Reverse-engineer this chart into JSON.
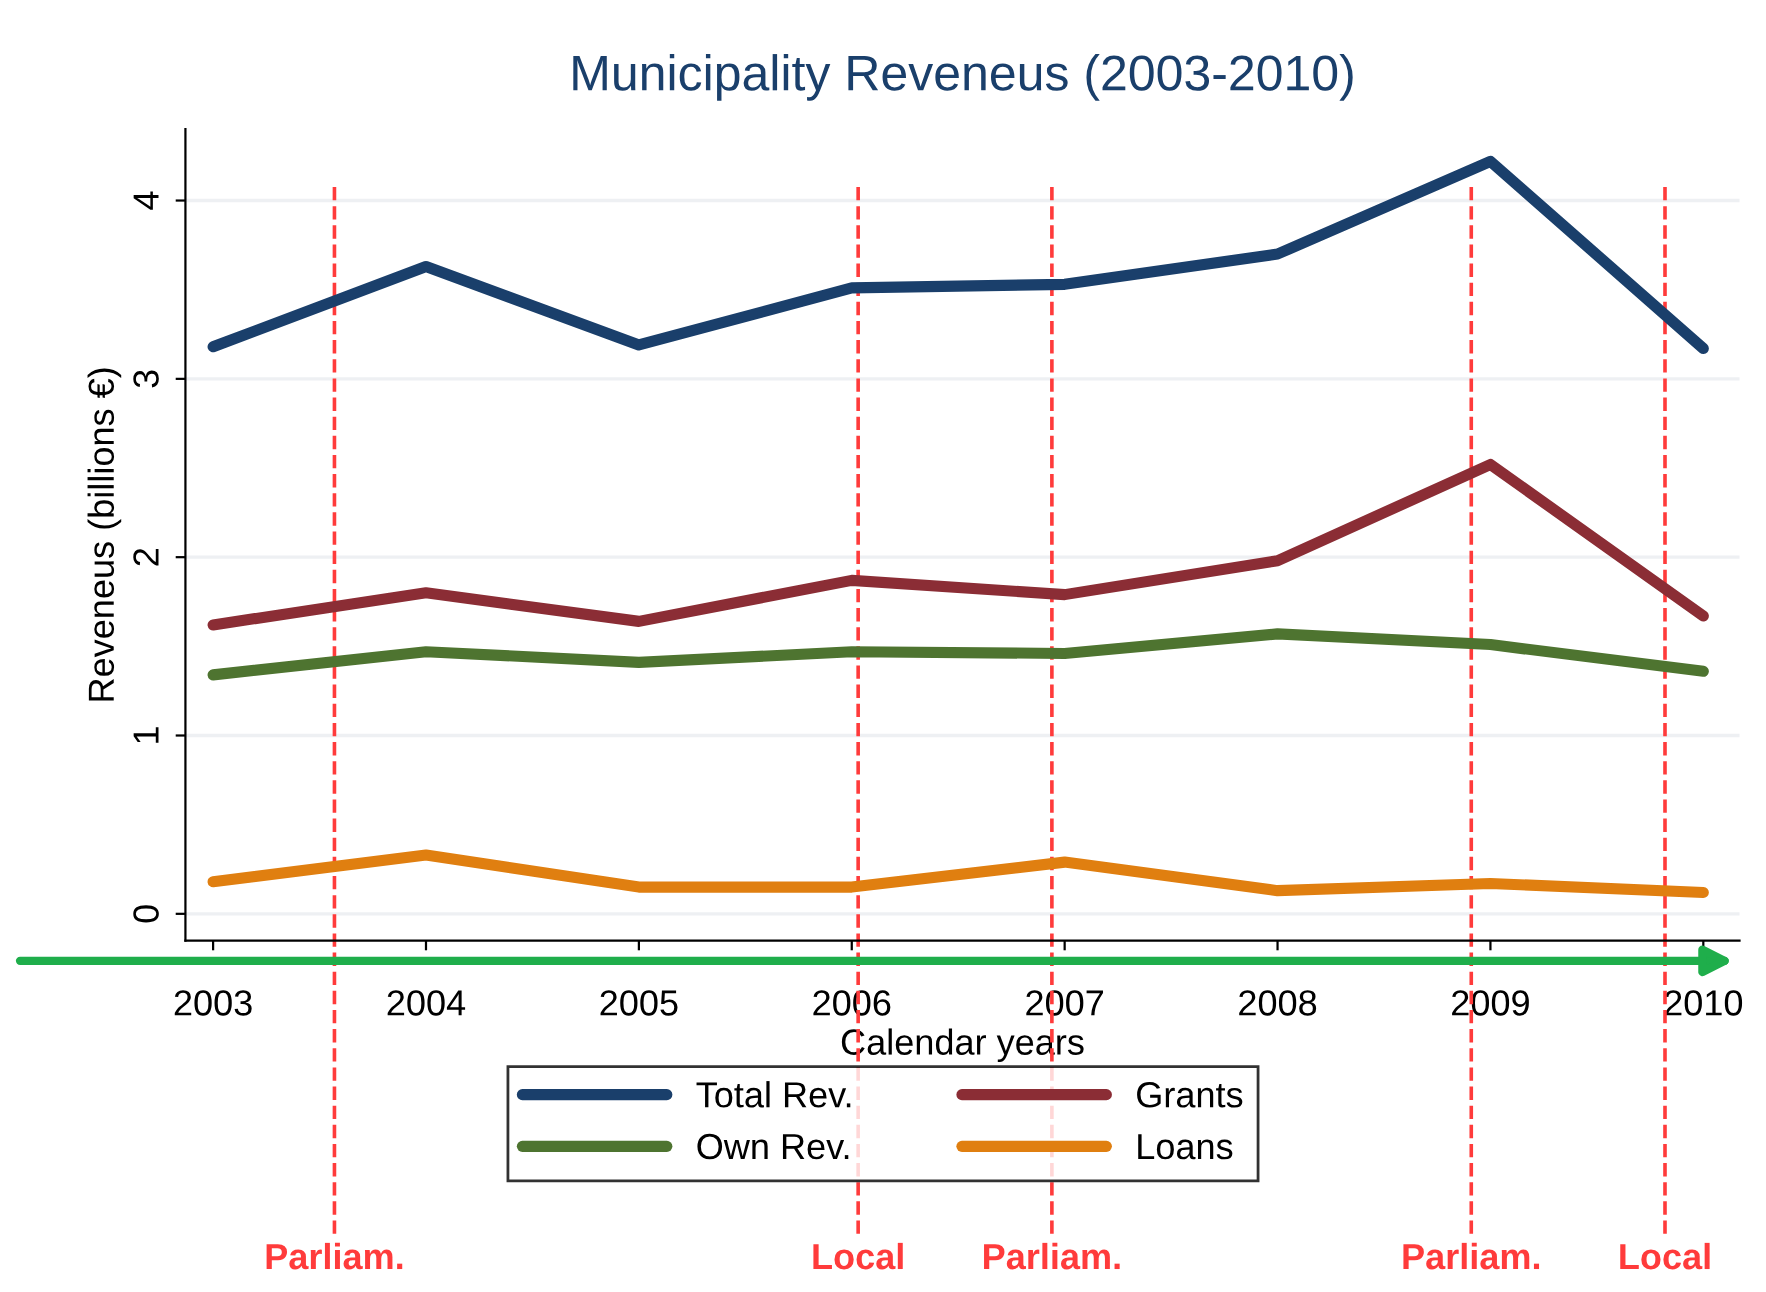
{
  "chart_data": {
    "type": "line",
    "title": "Municipality Reveneus (2003-2010)",
    "xlabel": "Calendar years",
    "ylabel": "Reveneus (billions €)",
    "x": [
      2003,
      2004,
      2005,
      2006,
      2007,
      2008,
      2009,
      2010
    ],
    "series": [
      {
        "name": "Total Rev.",
        "color": "#1a3f6b",
        "values": [
          3.18,
          3.63,
          3.19,
          3.51,
          3.53,
          3.7,
          4.22,
          3.17
        ]
      },
      {
        "name": "Grants",
        "color": "#8b2d35",
        "values": [
          1.62,
          1.8,
          1.64,
          1.87,
          1.79,
          1.98,
          2.52,
          1.67
        ]
      },
      {
        "name": "Own Rev.",
        "color": "#4e7430",
        "values": [
          1.34,
          1.47,
          1.41,
          1.47,
          1.46,
          1.57,
          1.51,
          1.36
        ]
      },
      {
        "name": "Loans",
        "color": "#e07f10",
        "values": [
          0.18,
          0.33,
          0.15,
          0.15,
          0.29,
          0.13,
          0.17,
          0.12
        ]
      }
    ],
    "xlim": [
      2002.87,
      2010.17
    ],
    "ylim": [
      -0.15,
      4.4
    ],
    "xticks": [
      2003,
      2004,
      2005,
      2006,
      2007,
      2008,
      2009,
      2010
    ],
    "yticks": [
      0,
      1,
      2,
      3,
      4
    ],
    "grid": "y",
    "legend": "bottom",
    "marker": "none",
    "line_style": "solid",
    "ref_lines": [
      {
        "axis": "x",
        "value": 2003.57,
        "label": "Parliam.",
        "color": "#ff3b3b",
        "line_style": "dashed"
      },
      {
        "axis": "x",
        "value": 2006.03,
        "label": "Local",
        "color": "#ff3b3b",
        "line_style": "dashed"
      },
      {
        "axis": "x",
        "value": 2006.94,
        "label": "Parliam.",
        "color": "#ff3b3b",
        "line_style": "dashed"
      },
      {
        "axis": "x",
        "value": 2008.91,
        "label": "Parliam.",
        "color": "#ff3b3b",
        "line_style": "dashed"
      },
      {
        "axis": "x",
        "value": 2009.82,
        "label": "Local",
        "color": "#ff3b3b",
        "line_style": "dashed"
      }
    ]
  }
}
